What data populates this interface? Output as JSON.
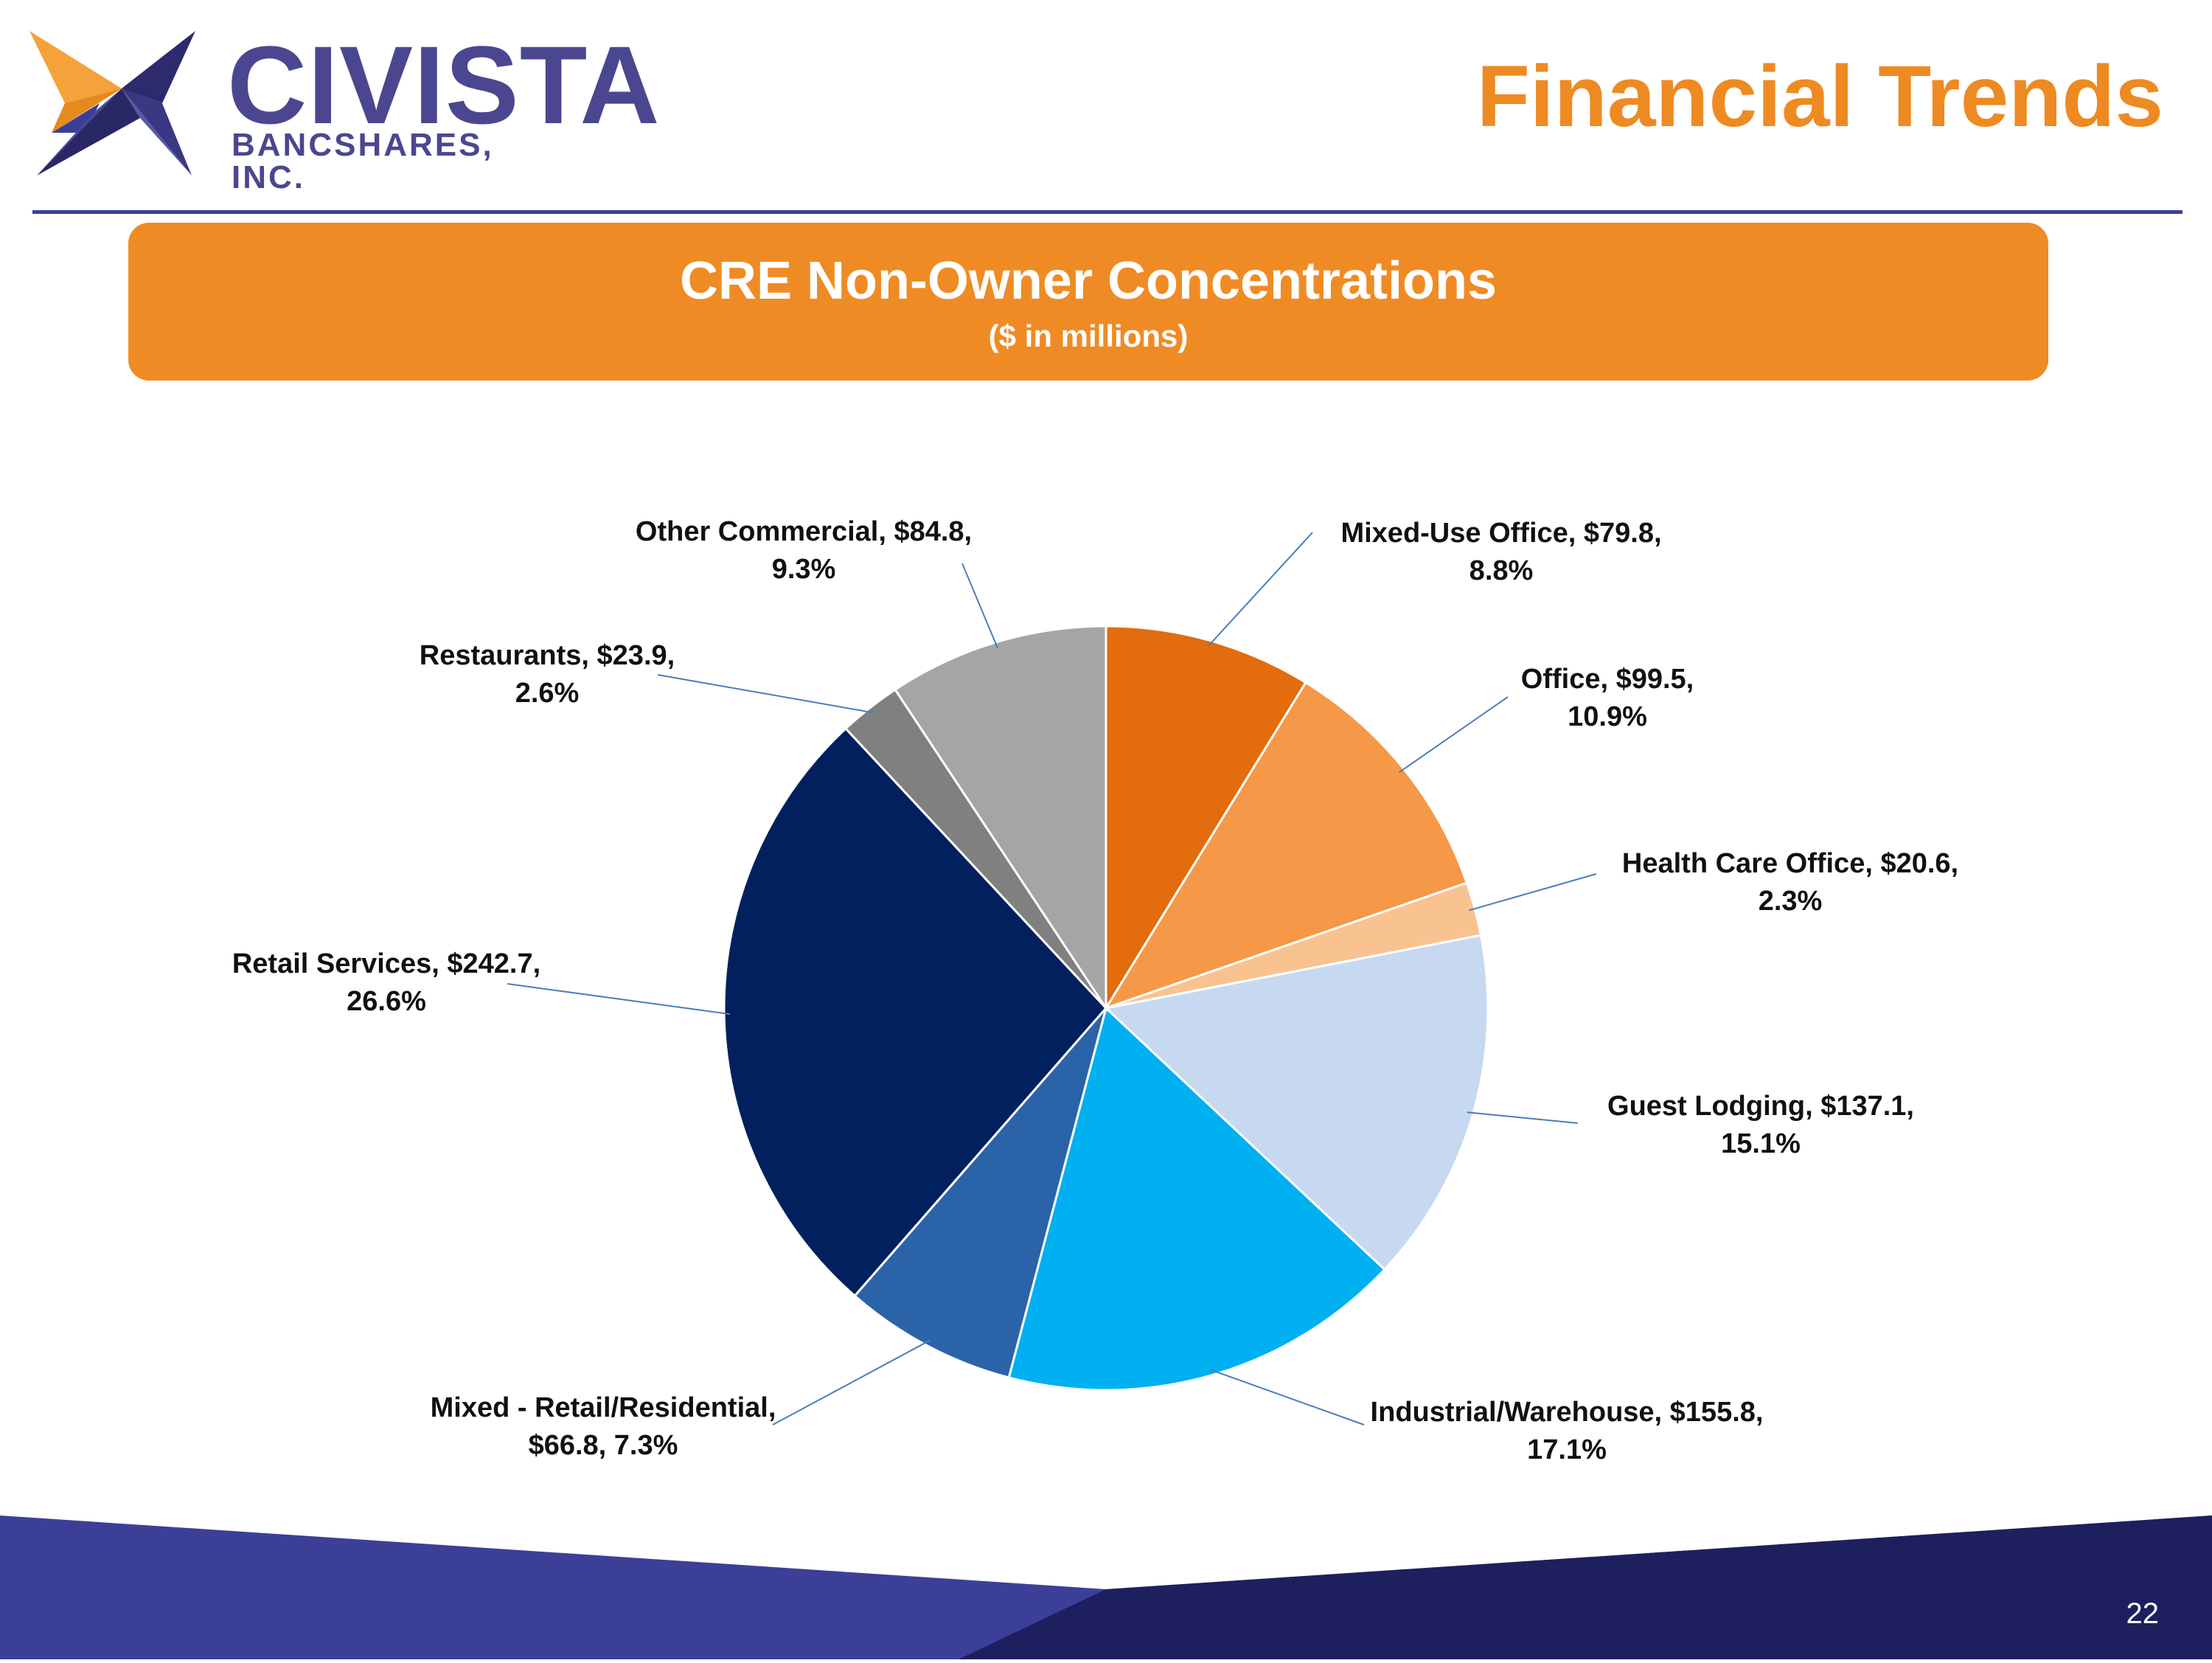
{
  "brand": {
    "name": "CIVISTA",
    "subtitle": "BANCSHARES, INC.",
    "logo_icon": "star-icon"
  },
  "header": {
    "title": "Financial Trends"
  },
  "banner": {
    "title": "CRE Non-Owner Concentrations",
    "subtitle": "($ in millions)"
  },
  "colors": {
    "accent": "#ef8b24",
    "brand": "#4a4790",
    "rule": "#3d3f97",
    "footer_light": "#3c3f97",
    "footer_dark": "#1e1f5e"
  },
  "chart_data": {
    "type": "pie",
    "title": "CRE Non-Owner Concentrations",
    "subtitle": "($ in millions)",
    "start": "12 o'clock",
    "direction": "clockwise",
    "slices": [
      {
        "name": "Mixed-Use Office",
        "value": 79.8,
        "percent": 8.8,
        "color": "#e26c0e",
        "label_line1": "Mixed-Use Office, $79.8,",
        "label_line2": "8.8%"
      },
      {
        "name": "Office",
        "value": 99.5,
        "percent": 10.9,
        "color": "#f59847",
        "label_line1": "Office, $99.5,",
        "label_line2": "10.9%"
      },
      {
        "name": "Health Care Office",
        "value": 20.6,
        "percent": 2.3,
        "color": "#f9c291",
        "label_line1": "Health Care Office, $20.6,",
        "label_line2": "2.3%"
      },
      {
        "name": "Guest Lodging",
        "value": 137.1,
        "percent": 15.1,
        "color": "#c6d9f1",
        "label_line1": "Guest Lodging, $137.1,",
        "label_line2": "15.1%"
      },
      {
        "name": "Industrial/Warehouse",
        "value": 155.8,
        "percent": 17.1,
        "color": "#00b0f0",
        "label_line1": "Industrial/Warehouse, $155.8,",
        "label_line2": "17.1%"
      },
      {
        "name": "Mixed - Retail/Residential",
        "value": 66.8,
        "percent": 7.3,
        "color": "#2a63a8",
        "label_line1": "Mixed - Retail/Residential,",
        "label_line2": "$66.8, 7.3%"
      },
      {
        "name": "Retail Services",
        "value": 242.7,
        "percent": 26.6,
        "color": "#02205e",
        "label_line1": "Retail Services, $242.7,",
        "label_line2": "26.6%"
      },
      {
        "name": "Restaurants",
        "value": 23.9,
        "percent": 2.6,
        "color": "#808080",
        "label_line1": "Restaurants, $23.9,",
        "label_line2": "2.6%"
      },
      {
        "name": "Other Commercial",
        "value": 84.8,
        "percent": 9.3,
        "color": "#a5a5a5",
        "label_line1": "Other Commercial, $84.8,",
        "label_line2": "9.3%"
      }
    ]
  },
  "footer": {
    "page_number": "22"
  }
}
